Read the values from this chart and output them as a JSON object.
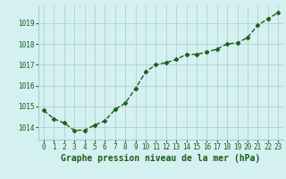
{
  "x": [
    0,
    1,
    2,
    3,
    4,
    5,
    6,
    7,
    8,
    9,
    10,
    11,
    12,
    13,
    14,
    15,
    16,
    17,
    18,
    19,
    20,
    21,
    22,
    23
  ],
  "y": [
    1014.8,
    1014.4,
    1014.2,
    1013.85,
    1013.85,
    1014.1,
    1014.3,
    1014.85,
    1015.15,
    1015.85,
    1016.65,
    1017.0,
    1017.1,
    1017.25,
    1017.5,
    1017.5,
    1017.6,
    1017.75,
    1018.0,
    1018.05,
    1018.3,
    1018.9,
    1019.2,
    1019.5
  ],
  "line_color": "#1a5e1a",
  "marker": "D",
  "marker_size": 2.5,
  "line_width": 1.0,
  "bg_color": "#d4f0f0",
  "grid_color": "#aacccc",
  "xlabel": "Graphe pression niveau de la mer (hPa)",
  "xlabel_color": "#1a5e1a",
  "xlabel_fontsize": 7,
  "tick_color": "#1a5e1a",
  "tick_fontsize": 5.5,
  "ylim": [
    1013.4,
    1019.85
  ],
  "yticks": [
    1014,
    1015,
    1016,
    1017,
    1018,
    1019
  ],
  "xlim": [
    -0.5,
    23.5
  ],
  "xticks": [
    0,
    1,
    2,
    3,
    4,
    5,
    6,
    7,
    8,
    9,
    10,
    11,
    12,
    13,
    14,
    15,
    16,
    17,
    18,
    19,
    20,
    21,
    22,
    23
  ]
}
